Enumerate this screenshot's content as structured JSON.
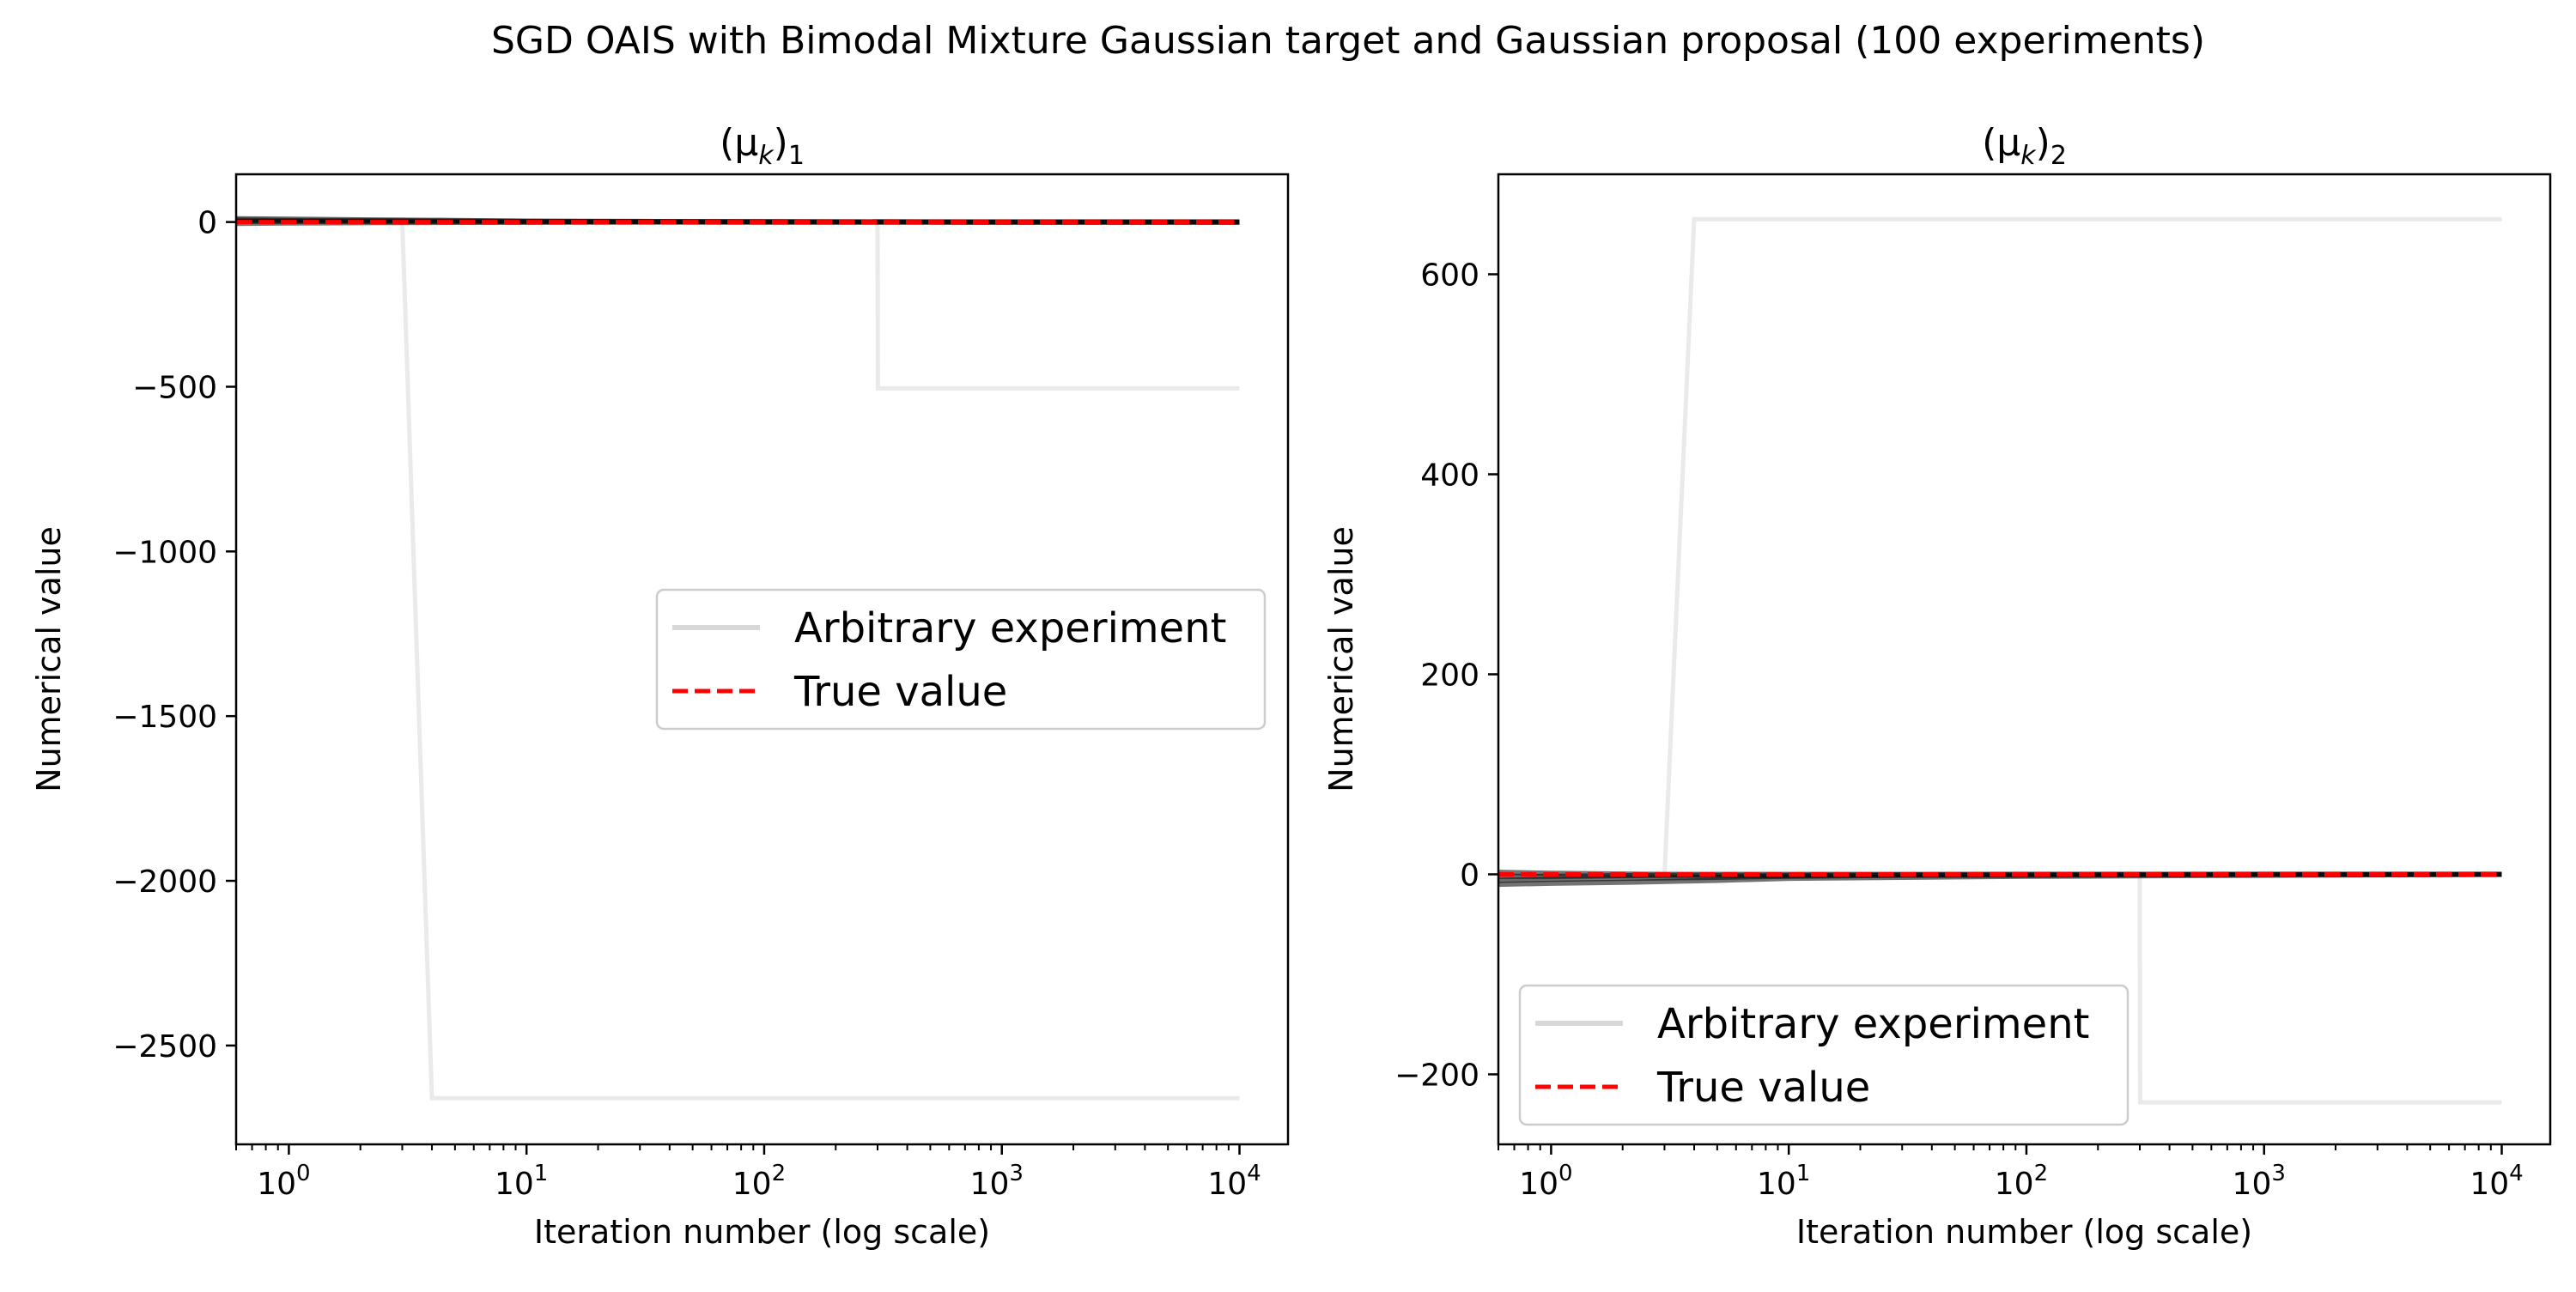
{
  "figure": {
    "suptitle": "SGD OAIS with Bimodal Mixture Gaussian target and Gaussian proposal (100 experiments)"
  },
  "chart_data": [
    {
      "type": "line",
      "title_base": "(μ",
      "title_sub_k": "k",
      "title_close": ")",
      "title_sub_index": "1",
      "xlabel": "Iteration number (log scale)",
      "ylabel": "Numerical value",
      "x_scale": "log",
      "xlim": [
        0.6,
        16000
      ],
      "ylim": [
        -2800,
        145
      ],
      "x_ticks": [
        {
          "value": 1,
          "base": "10",
          "exp": "0"
        },
        {
          "value": 10,
          "base": "10",
          "exp": "1"
        },
        {
          "value": 100,
          "base": "10",
          "exp": "2"
        },
        {
          "value": 1000,
          "base": "10",
          "exp": "3"
        },
        {
          "value": 10000,
          "base": "10",
          "exp": "4"
        }
      ],
      "y_ticks": [
        {
          "value": 0,
          "label": "0"
        },
        {
          "value": -500,
          "label": "−500"
        },
        {
          "value": -1000,
          "label": "−1000"
        },
        {
          "value": -1500,
          "label": "−1500"
        },
        {
          "value": -2000,
          "label": "−2000"
        },
        {
          "value": -2500,
          "label": "−2500"
        }
      ],
      "legend": {
        "placement": "center-right",
        "entries": [
          {
            "label": "Arbitrary experiment",
            "color": "#d8d8d8",
            "style": "solid"
          },
          {
            "label": "True value",
            "color": "#ff0000",
            "style": "dashed"
          }
        ]
      },
      "true_value": 0,
      "series": [
        {
          "role": "outlier",
          "x": [
            0.6,
            3,
            4,
            10000
          ],
          "y": [
            5,
            0,
            -2660,
            -2660
          ]
        },
        {
          "role": "outlier",
          "x": [
            0.6,
            300,
            301,
            10000
          ],
          "y": [
            3,
            0,
            -505,
            -505
          ]
        },
        {
          "role": "bundle",
          "x": [
            0.6,
            1,
            2,
            5,
            10,
            30,
            100,
            1000,
            10000
          ],
          "y": [
            10,
            9,
            7,
            5,
            3,
            2,
            1,
            0,
            0
          ]
        },
        {
          "role": "bundle",
          "x": [
            0.6,
            1,
            2,
            5,
            10,
            30,
            100,
            1000,
            10000
          ],
          "y": [
            -4,
            -3,
            -2,
            -1,
            -1,
            0,
            0,
            0,
            0
          ]
        },
        {
          "role": "bundle",
          "x": [
            0.6,
            1,
            3,
            10,
            100,
            1000,
            10000
          ],
          "y": [
            6,
            5,
            4,
            2,
            1,
            0,
            0
          ]
        },
        {
          "role": "bundle",
          "x": [
            0.6,
            1,
            3,
            10,
            100,
            1000,
            10000
          ],
          "y": [
            2,
            2,
            1,
            1,
            0,
            0,
            0
          ]
        }
      ]
    },
    {
      "type": "line",
      "title_base": "(μ",
      "title_sub_k": "k",
      "title_close": ")",
      "title_sub_index": "2",
      "xlabel": "Iteration number (log scale)",
      "ylabel": "Numerical value",
      "x_scale": "log",
      "xlim": [
        0.6,
        16000
      ],
      "ylim": [
        -270,
        700
      ],
      "x_ticks": [
        {
          "value": 1,
          "base": "10",
          "exp": "0"
        },
        {
          "value": 10,
          "base": "10",
          "exp": "1"
        },
        {
          "value": 100,
          "base": "10",
          "exp": "2"
        },
        {
          "value": 1000,
          "base": "10",
          "exp": "3"
        },
        {
          "value": 10000,
          "base": "10",
          "exp": "4"
        }
      ],
      "y_ticks": [
        {
          "value": 600,
          "label": "600"
        },
        {
          "value": 400,
          "label": "400"
        },
        {
          "value": 200,
          "label": "200"
        },
        {
          "value": 0,
          "label": "0"
        },
        {
          "value": -200,
          "label": "−200"
        }
      ],
      "legend": {
        "placement": "lower-left",
        "entries": [
          {
            "label": "Arbitrary experiment",
            "color": "#d8d8d8",
            "style": "solid"
          },
          {
            "label": "True value",
            "color": "#ff0000",
            "style": "dashed"
          }
        ]
      },
      "true_value": 0,
      "series": [
        {
          "role": "outlier",
          "x": [
            0.6,
            3,
            4,
            10000
          ],
          "y": [
            -5,
            0,
            655,
            655
          ]
        },
        {
          "role": "outlier",
          "x": [
            0.6,
            300,
            301,
            10000
          ],
          "y": [
            -3,
            0,
            -228,
            -228
          ]
        },
        {
          "role": "bundle",
          "x": [
            0.6,
            1,
            2,
            5,
            10,
            30,
            100,
            1000,
            10000
          ],
          "y": [
            -10,
            -9,
            -8,
            -6,
            -4,
            -3,
            -2,
            -1,
            0
          ]
        },
        {
          "role": "bundle",
          "x": [
            0.6,
            1,
            2,
            5,
            10,
            30,
            100,
            1000,
            10000
          ],
          "y": [
            -6,
            -5,
            -4,
            -3,
            -2,
            -1,
            -1,
            0,
            0
          ]
        },
        {
          "role": "bundle",
          "x": [
            0.6,
            1,
            3,
            10,
            100,
            1000,
            10000
          ],
          "y": [
            2,
            1,
            0,
            0,
            0,
            0,
            0
          ]
        },
        {
          "role": "bundle",
          "x": [
            0.6,
            1,
            3,
            10,
            100,
            1000,
            10000
          ],
          "y": [
            -2,
            -2,
            -1,
            -1,
            0,
            0,
            0
          ]
        }
      ]
    }
  ]
}
